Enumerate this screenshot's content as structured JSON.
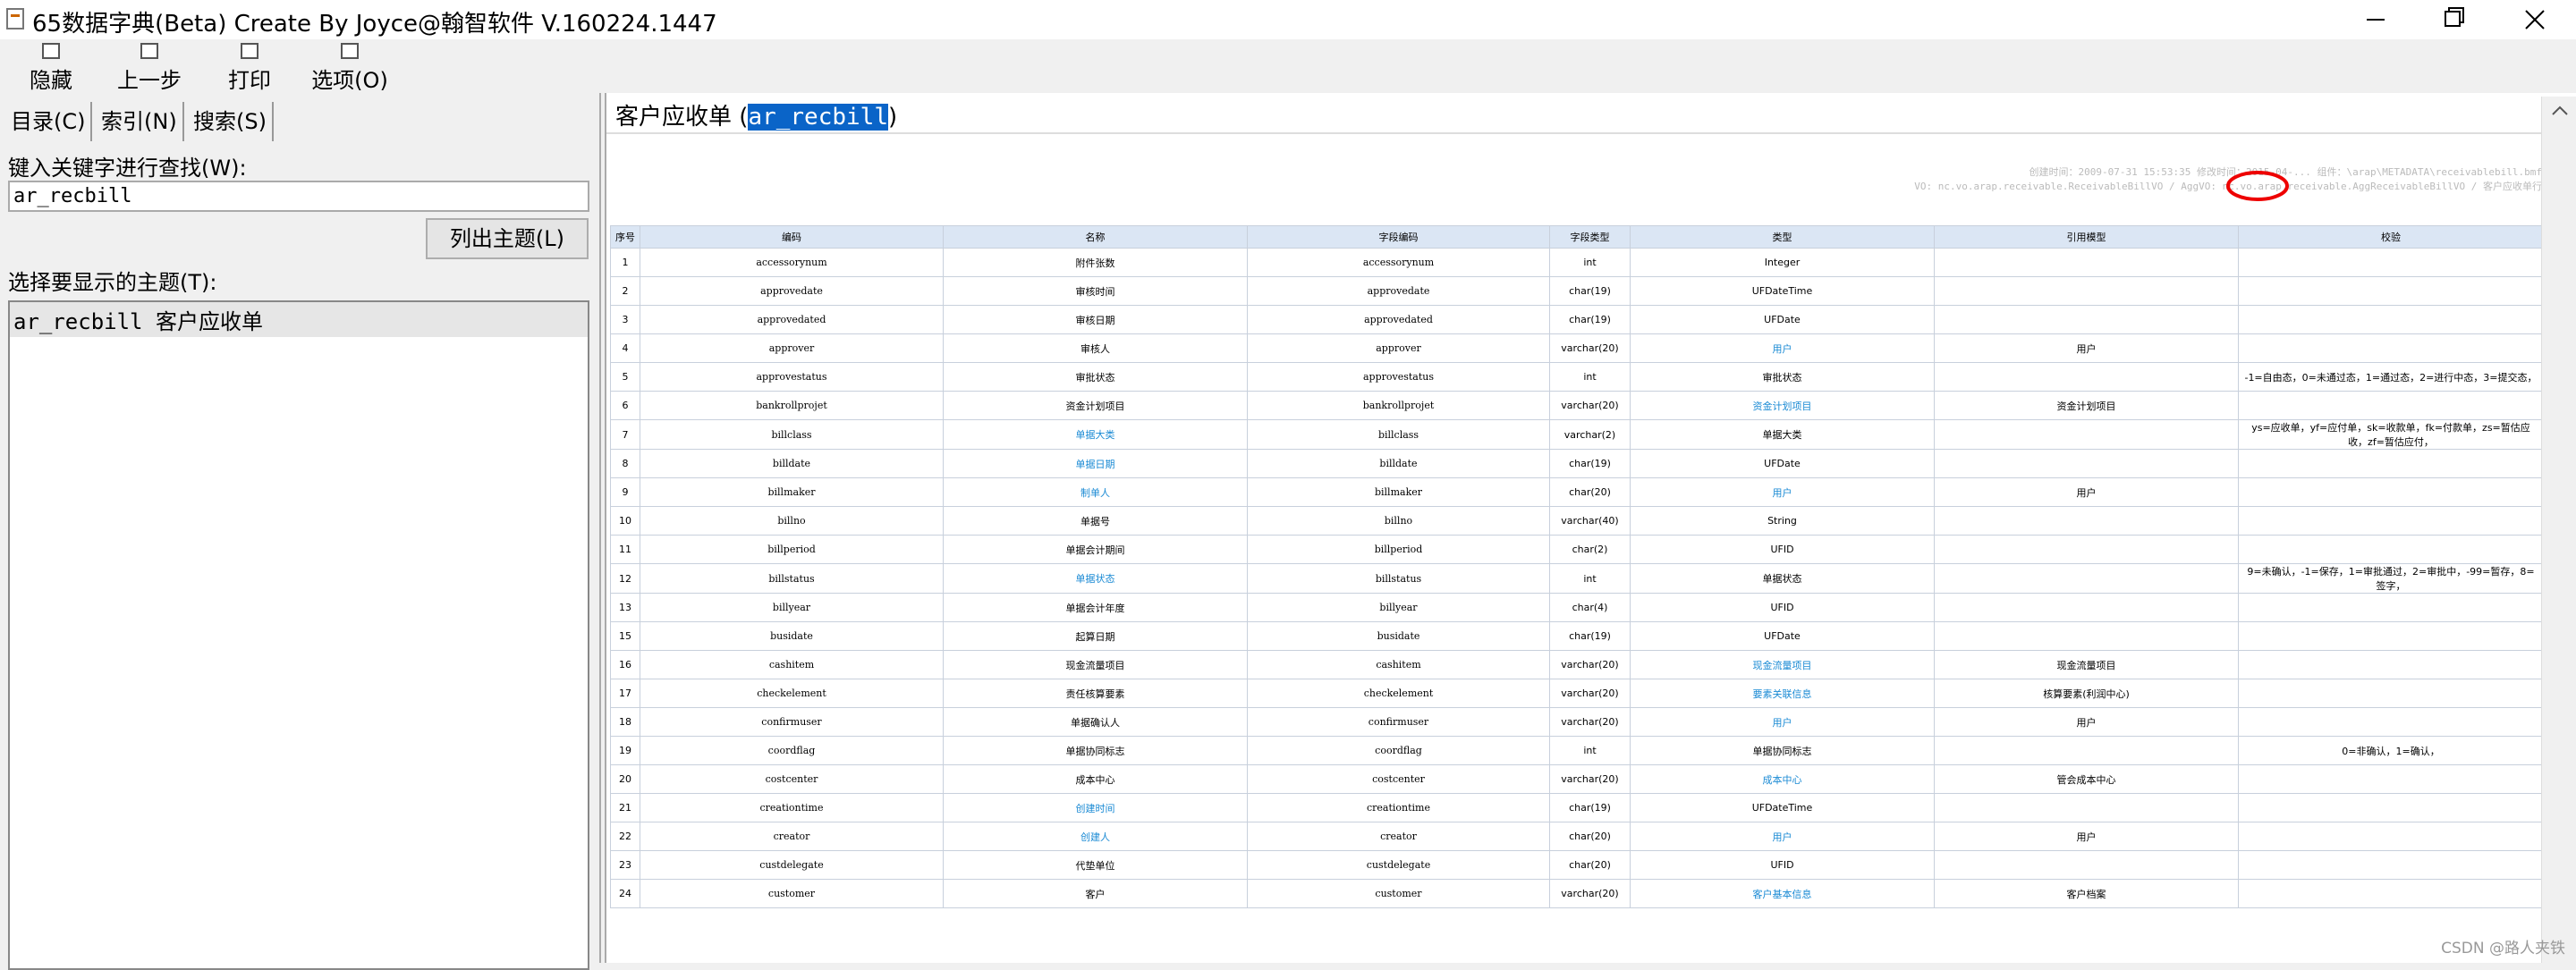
{
  "window": {
    "title": "65数据字典(Beta) Create By Joyce@翰智软件 V.160224.1447"
  },
  "toolbar": [
    "隐藏",
    "上一步",
    "打印",
    "选项(O)"
  ],
  "tabs": [
    "目录(C)",
    "索引(N)",
    "搜索(S)"
  ],
  "left_panel": {
    "search_label": "键入关键字进行查找(W):",
    "search_value": "ar_recbill",
    "list_button": "列出主题(L)",
    "topic_label": "选择要显示的主题(T):",
    "topics": [
      "ar_recbill 客户应收单"
    ]
  },
  "content": {
    "title": "客户应收单",
    "code": "ar_recbill",
    "meta": [
      "创建时间：2009-07-31 15:53:35  修改时间：2015-04-... 组件：\\arap\\METADATA\\receivablebill.bmf",
      "VO: nc.vo.arap.receivable.ReceivableBillVO / AggVO: nc.vo.arap.receivable.AggReceivableBillVO / 客户应收单行"
    ]
  },
  "table": {
    "headers": [
      "序号",
      "编码",
      "名称",
      "字段编码",
      "字段类型",
      "类型",
      "引用模型",
      "校验"
    ],
    "rows": [
      {
        "cells": [
          "1",
          "accessorynum",
          "附件张数",
          "accessorynum",
          "int",
          "Integer",
          null,
          null
        ],
        "links": []
      },
      {
        "cells": [
          "2",
          "approvedate",
          "审核时间",
          "approvedate",
          "char(19)",
          "UFDateTime",
          null,
          null
        ],
        "links": []
      },
      {
        "cells": [
          "3",
          "approvedated",
          "审核日期",
          "approvedated",
          "char(19)",
          "UFDate",
          null,
          null
        ],
        "links": []
      },
      {
        "cells": [
          "4",
          "approver",
          "审核人",
          "approver",
          "varchar(20)",
          "用户",
          "用户",
          null
        ],
        "links": [
          5
        ]
      },
      {
        "cells": [
          "5",
          "approvestatus",
          "审批状态",
          "approvestatus",
          "int",
          "审批状态",
          null,
          "-1=自由态，0=未通过态，1=通过态，2=进行中态，3=提交态，"
        ],
        "links": []
      },
      {
        "cells": [
          "6",
          "bankrollprojet",
          "资金计划项目",
          "bankrollprojet",
          "varchar(20)",
          "资金计划项目",
          "资金计划项目",
          null
        ],
        "links": [
          5
        ]
      },
      {
        "cells": [
          "7",
          "billclass",
          "单据大类",
          "billclass",
          "varchar(2)",
          "单据大类",
          null,
          "ys=应收单，yf=应付单，sk=收款单，fk=付款单，zs=暂估应收，zf=暂估应付，"
        ],
        "links": [
          2
        ]
      },
      {
        "cells": [
          "8",
          "billdate",
          "单据日期",
          "billdate",
          "char(19)",
          "UFDate",
          null,
          null
        ],
        "links": [
          2
        ]
      },
      {
        "cells": [
          "9",
          "billmaker",
          "制单人",
          "billmaker",
          "char(20)",
          "用户",
          "用户",
          null
        ],
        "links": [
          2,
          5
        ]
      },
      {
        "cells": [
          "10",
          "billno",
          "单据号",
          "billno",
          "varchar(40)",
          "String",
          null,
          null
        ],
        "links": []
      },
      {
        "cells": [
          "11",
          "billperiod",
          "单据会计期间",
          "billperiod",
          "char(2)",
          "UFID",
          null,
          null
        ],
        "links": []
      },
      {
        "cells": [
          "12",
          "billstatus",
          "单据状态",
          "billstatus",
          "int",
          "单据状态",
          null,
          "9=未确认，-1=保存，1=审批通过，2=审批中，-99=暂存，8=签字，"
        ],
        "links": [
          2
        ]
      },
      {
        "cells": [
          "13",
          "billyear",
          "单据会计年度",
          "billyear",
          "char(4)",
          "UFID",
          null,
          null
        ],
        "links": []
      },
      {
        "cells": [
          "15",
          "busidate",
          "起算日期",
          "busidate",
          "char(19)",
          "UFDate",
          null,
          null
        ],
        "links": []
      },
      {
        "cells": [
          "16",
          "cashitem",
          "现金流量项目",
          "cashitem",
          "varchar(20)",
          "现金流量项目",
          "现金流量项目",
          null
        ],
        "links": [
          5
        ]
      },
      {
        "cells": [
          "17",
          "checkelement",
          "责任核算要素",
          "checkelement",
          "varchar(20)",
          "要素关联信息",
          "核算要素(利润中心)",
          null
        ],
        "links": [
          5
        ]
      },
      {
        "cells": [
          "18",
          "confirmuser",
          "单据确认人",
          "confirmuser",
          "varchar(20)",
          "用户",
          "用户",
          null
        ],
        "links": [
          5
        ]
      },
      {
        "cells": [
          "19",
          "coordflag",
          "单据协同标志",
          "coordflag",
          "int",
          "单据协同标志",
          null,
          "0=非确认，1=确认，"
        ],
        "links": []
      },
      {
        "cells": [
          "20",
          "costcenter",
          "成本中心",
          "costcenter",
          "varchar(20)",
          "成本中心",
          "管会成本中心",
          null
        ],
        "links": [
          5
        ]
      },
      {
        "cells": [
          "21",
          "creationtime",
          "创建时间",
          "creationtime",
          "char(19)",
          "UFDateTime",
          null,
          null
        ],
        "links": [
          2
        ]
      },
      {
        "cells": [
          "22",
          "creator",
          "创建人",
          "creator",
          "char(20)",
          "用户",
          "用户",
          null
        ],
        "links": [
          2,
          5
        ]
      },
      {
        "cells": [
          "23",
          "custdelegate",
          "代垫单位",
          "custdelegate",
          "char(20)",
          "UFID",
          null,
          null
        ],
        "links": []
      },
      {
        "cells": [
          "24",
          "customer",
          "客户",
          "customer",
          "varchar(20)",
          "客户基本信息",
          "客户档案",
          null
        ],
        "links": [
          5
        ]
      }
    ]
  },
  "watermark": "CSDN @路人夹铁"
}
